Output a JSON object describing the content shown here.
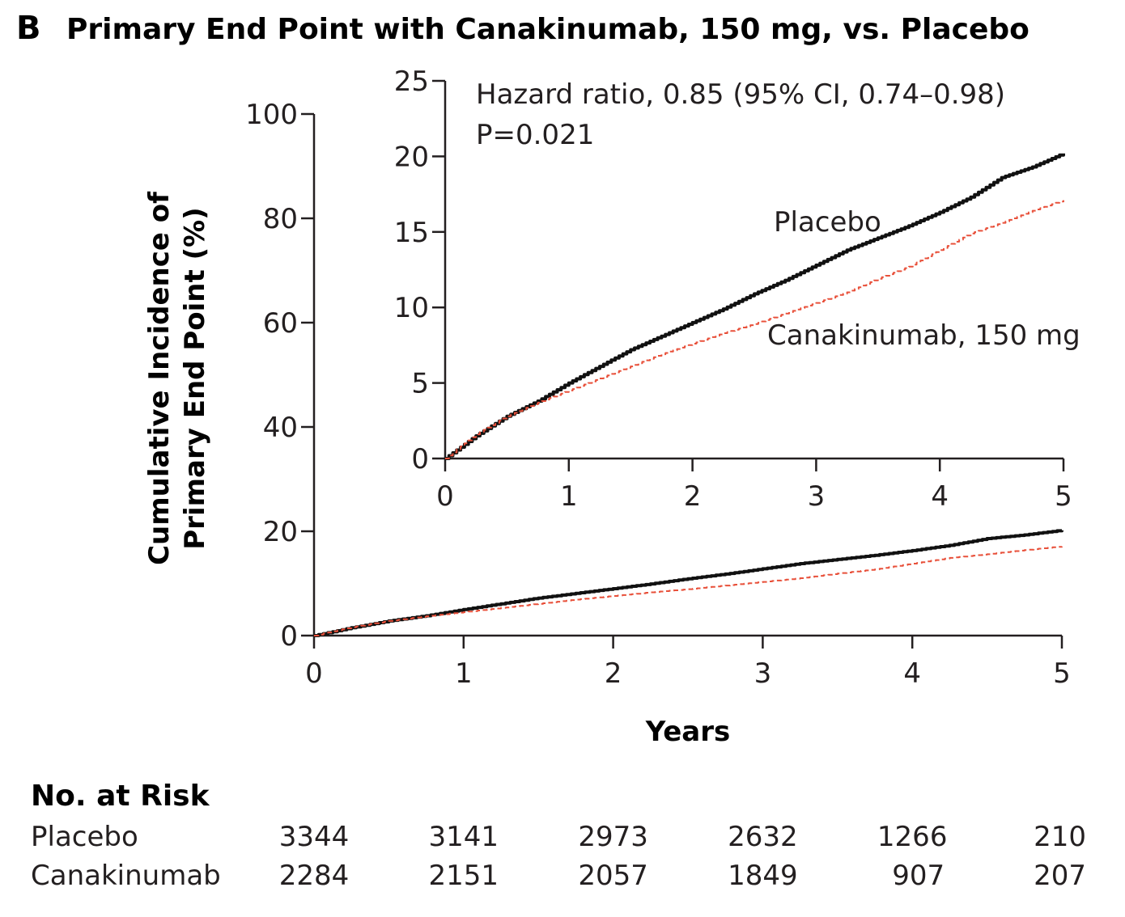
{
  "figure": {
    "panel_letter": "B",
    "title": "Primary End Point with Canakinumab, 150 mg, vs. Placebo"
  },
  "chart_data": [
    {
      "id": "main",
      "type": "line",
      "title": "Primary End Point with Canakinumab, 150 mg, vs. Placebo",
      "xlabel": "Years",
      "ylabel_lines": [
        "Cumulative Incidence of",
        "Primary End Point (%)"
      ],
      "xlim": [
        0,
        5
      ],
      "ylim": [
        0,
        100
      ],
      "xticks": [
        0,
        1,
        2,
        3,
        4,
        5
      ],
      "yticks": [
        0,
        20,
        40,
        60,
        80,
        100
      ],
      "xtick_labels": [
        "0",
        "1",
        "2",
        "3",
        "4",
        "5"
      ],
      "ytick_labels": [
        "0",
        "20",
        "40",
        "60",
        "80",
        "100"
      ],
      "series": [
        {
          "name": "Placebo",
          "color": "#111111",
          "style": "solid",
          "x": [
            0,
            0.25,
            0.5,
            0.75,
            1,
            1.25,
            1.5,
            1.75,
            2,
            2.25,
            2.5,
            2.75,
            3,
            3.25,
            3.5,
            3.75,
            4,
            4.25,
            4.5,
            4.75,
            5
          ],
          "y": [
            0,
            1.5,
            2.8,
            3.8,
            5.0,
            6.1,
            7.2,
            8.1,
            9.0,
            9.9,
            10.9,
            11.8,
            12.8,
            13.8,
            14.6,
            15.4,
            16.3,
            17.3,
            18.6,
            19.3,
            20.2
          ]
        },
        {
          "name": "Canakinumab, 150 mg",
          "color": "#e8503a",
          "style": "dashed",
          "x": [
            0,
            0.25,
            0.5,
            0.75,
            1,
            1.25,
            1.5,
            1.75,
            2,
            2.25,
            2.5,
            2.75,
            3,
            3.25,
            3.5,
            3.75,
            4,
            4.25,
            4.5,
            4.75,
            5
          ],
          "y": [
            0,
            1.6,
            2.8,
            3.7,
            4.5,
            5.3,
            6.1,
            6.9,
            7.6,
            8.3,
            8.9,
            9.6,
            10.3,
            11.0,
            11.9,
            12.7,
            13.8,
            14.9,
            15.6,
            16.4,
            17.1
          ]
        }
      ]
    },
    {
      "id": "inset",
      "type": "line",
      "xlim": [
        0,
        5
      ],
      "ylim": [
        0,
        25
      ],
      "xticks": [
        0,
        1,
        2,
        3,
        4,
        5
      ],
      "yticks": [
        0,
        5,
        10,
        15,
        20,
        25
      ],
      "xtick_labels": [
        "0",
        "1",
        "2",
        "3",
        "4",
        "5"
      ],
      "ytick_labels": [
        "0",
        "5",
        "10",
        "15",
        "20",
        "25"
      ],
      "annotations": {
        "hazard_ratio": "Hazard ratio, 0.85 (95% CI, 0.74–0.98)",
        "p_value": "P=0.021",
        "placebo_label": "Placebo",
        "canakinumab_label": "Canakinumab, 150 mg"
      }
    }
  ],
  "risk_table": {
    "heading": "No. at Risk",
    "rows": [
      {
        "label": "Placebo",
        "values": [
          "3344",
          "3141",
          "2973",
          "2632",
          "1266",
          "210"
        ]
      },
      {
        "label": "Canakinumab",
        "values": [
          "2284",
          "2151",
          "2057",
          "1849",
          "907",
          "207"
        ]
      }
    ]
  }
}
